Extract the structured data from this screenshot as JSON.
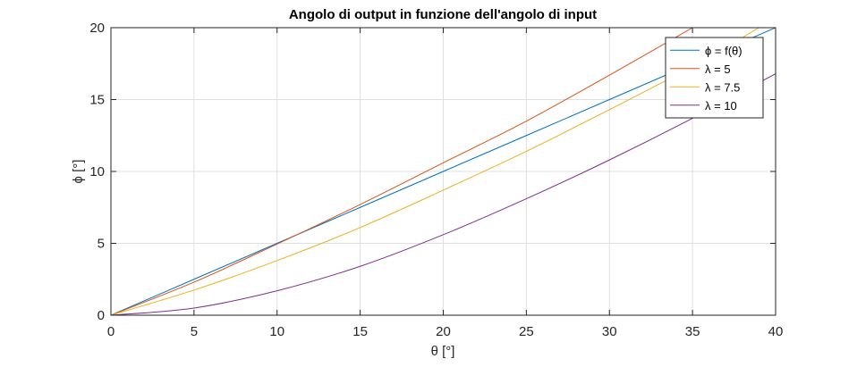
{
  "chart_data": {
    "type": "line",
    "title": "Angolo di output in funzione dell'angolo di input",
    "xlabel": "θ [°]",
    "ylabel": "ϕ [°]",
    "xlim": [
      0,
      40
    ],
    "ylim": [
      0,
      20
    ],
    "xticks": [
      0,
      5,
      10,
      15,
      20,
      25,
      30,
      35,
      40
    ],
    "yticks": [
      0,
      5,
      10,
      15,
      20
    ],
    "grid": true,
    "legend_position": "top-right",
    "series": [
      {
        "name": "ϕ = f(θ)",
        "color": "#0072BD",
        "x": [
          0,
          5,
          10,
          15,
          20,
          25,
          30,
          35,
          40
        ],
        "y": [
          0,
          2.5,
          5,
          7.5,
          10,
          12.5,
          15,
          17.5,
          20
        ]
      },
      {
        "name": "λ = 5",
        "color": "#D95319",
        "x": [
          0,
          5,
          10,
          15,
          20,
          25,
          30,
          35
        ],
        "y": [
          0,
          2.3,
          4.95,
          7.7,
          10.6,
          13.5,
          16.7,
          20
        ]
      },
      {
        "name": "λ = 7.5",
        "color": "#EDB120",
        "x": [
          0,
          5,
          10,
          15,
          20,
          25,
          30,
          35,
          39
        ],
        "y": [
          0,
          1.75,
          3.8,
          6.1,
          8.7,
          11.4,
          14.3,
          17.3,
          20
        ]
      },
      {
        "name": "λ = 10",
        "color": "#7E2F8E",
        "x": [
          0,
          5,
          10,
          15,
          20,
          25,
          30,
          35,
          40
        ],
        "y": [
          0,
          0.5,
          1.7,
          3.4,
          5.6,
          8.1,
          10.8,
          13.7,
          16.8
        ]
      }
    ]
  }
}
